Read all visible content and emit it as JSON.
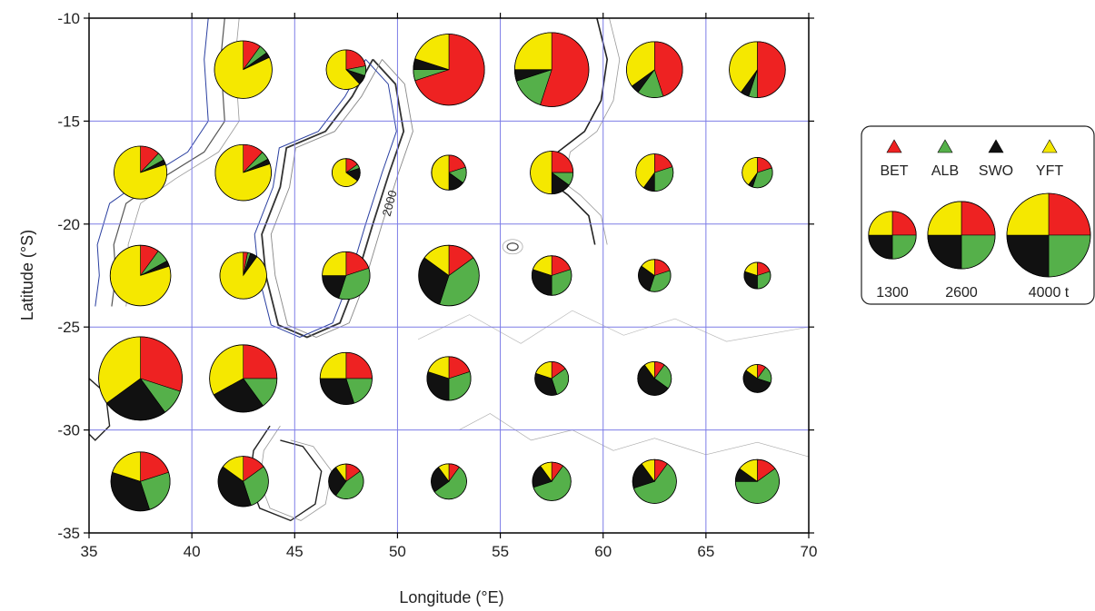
{
  "chart_data": {
    "type": "map-pie",
    "xlabel": "Longitude (°E)",
    "ylabel": "Latitude (°S)",
    "xlim": [
      35,
      70
    ],
    "ylim": [
      -35,
      -10
    ],
    "x_ticks": [
      35,
      40,
      45,
      50,
      55,
      60,
      65,
      70
    ],
    "y_ticks": [
      -10,
      -15,
      -20,
      -25,
      -30,
      -35
    ],
    "grid": true,
    "contour_label": "2000",
    "species_colors": {
      "BET": "#ee2222",
      "ALB": "#55b04a",
      "SWO": "#111111",
      "YFT": "#f5e800"
    },
    "species_order": [
      "BET",
      "ALB",
      "SWO",
      "YFT"
    ],
    "legend": {
      "placement": "right",
      "species": [
        {
          "code": "BET",
          "label": "BET",
          "color": "#ee2222"
        },
        {
          "code": "ALB",
          "label": "ALB",
          "color": "#55b04a"
        },
        {
          "code": "SWO",
          "label": "SWO",
          "color": "#111111"
        },
        {
          "code": "YFT",
          "label": "YFT",
          "color": "#f5e800"
        }
      ],
      "sizes": [
        {
          "value": 1300,
          "label": "1300"
        },
        {
          "value": 2600,
          "label": "2600"
        },
        {
          "value": 4000,
          "label": "4000 t"
        }
      ]
    },
    "catches": [
      {
        "lon": 42.5,
        "lat": -12.5,
        "total": 1900,
        "fractions": [
          0.1,
          0.05,
          0.03,
          0.82
        ]
      },
      {
        "lon": 47.5,
        "lat": -12.5,
        "total": 900,
        "fractions": [
          0.22,
          0.08,
          0.08,
          0.62
        ]
      },
      {
        "lon": 52.5,
        "lat": -12.5,
        "total": 2900,
        "fractions": [
          0.7,
          0.05,
          0.05,
          0.2
        ]
      },
      {
        "lon": 57.5,
        "lat": -12.5,
        "total": 3150,
        "fractions": [
          0.55,
          0.15,
          0.05,
          0.25
        ]
      },
      {
        "lon": 62.5,
        "lat": -12.5,
        "total": 1800,
        "fractions": [
          0.45,
          0.15,
          0.05,
          0.35
        ]
      },
      {
        "lon": 67.5,
        "lat": -12.5,
        "total": 1800,
        "fractions": [
          0.5,
          0.05,
          0.05,
          0.4
        ]
      },
      {
        "lon": 37.5,
        "lat": -17.5,
        "total": 1600,
        "fractions": [
          0.12,
          0.05,
          0.03,
          0.8
        ]
      },
      {
        "lon": 42.5,
        "lat": -17.5,
        "total": 1800,
        "fractions": [
          0.12,
          0.05,
          0.03,
          0.8
        ]
      },
      {
        "lon": 47.5,
        "lat": -17.5,
        "total": 450,
        "fractions": [
          0.15,
          0.05,
          0.15,
          0.65
        ]
      },
      {
        "lon": 52.5,
        "lat": -17.5,
        "total": 700,
        "fractions": [
          0.2,
          0.15,
          0.15,
          0.5
        ]
      },
      {
        "lon": 57.5,
        "lat": -17.5,
        "total": 1050,
        "fractions": [
          0.25,
          0.1,
          0.15,
          0.5
        ]
      },
      {
        "lon": 62.5,
        "lat": -17.5,
        "total": 800,
        "fractions": [
          0.2,
          0.3,
          0.1,
          0.4
        ]
      },
      {
        "lon": 67.5,
        "lat": -17.5,
        "total": 530,
        "fractions": [
          0.2,
          0.35,
          0.05,
          0.4
        ]
      },
      {
        "lon": 37.5,
        "lat": -22.5,
        "total": 2100,
        "fractions": [
          0.1,
          0.07,
          0.03,
          0.8
        ]
      },
      {
        "lon": 42.5,
        "lat": -22.5,
        "total": 1250,
        "fractions": [
          0.03,
          0.02,
          0.05,
          0.9
        ]
      },
      {
        "lon": 47.5,
        "lat": -22.5,
        "total": 1300,
        "fractions": [
          0.2,
          0.35,
          0.2,
          0.25
        ]
      },
      {
        "lon": 52.5,
        "lat": -22.5,
        "total": 2100,
        "fractions": [
          0.15,
          0.4,
          0.3,
          0.15
        ]
      },
      {
        "lon": 57.5,
        "lat": -22.5,
        "total": 900,
        "fractions": [
          0.2,
          0.3,
          0.3,
          0.2
        ]
      },
      {
        "lon": 62.5,
        "lat": -22.5,
        "total": 600,
        "fractions": [
          0.2,
          0.35,
          0.3,
          0.15
        ]
      },
      {
        "lon": 67.5,
        "lat": -22.5,
        "total": 400,
        "fractions": [
          0.2,
          0.3,
          0.3,
          0.2
        ]
      },
      {
        "lon": 37.5,
        "lat": -27.5,
        "total": 4000,
        "fractions": [
          0.3,
          0.1,
          0.25,
          0.35
        ]
      },
      {
        "lon": 42.5,
        "lat": -27.5,
        "total": 2600,
        "fractions": [
          0.25,
          0.15,
          0.27,
          0.33
        ]
      },
      {
        "lon": 47.5,
        "lat": -27.5,
        "total": 1550,
        "fractions": [
          0.25,
          0.2,
          0.3,
          0.25
        ]
      },
      {
        "lon": 52.5,
        "lat": -27.5,
        "total": 1100,
        "fractions": [
          0.2,
          0.3,
          0.3,
          0.2
        ]
      },
      {
        "lon": 57.5,
        "lat": -27.5,
        "total": 650,
        "fractions": [
          0.15,
          0.3,
          0.35,
          0.2
        ]
      },
      {
        "lon": 62.5,
        "lat": -27.5,
        "total": 650,
        "fractions": [
          0.1,
          0.25,
          0.55,
          0.1
        ]
      },
      {
        "lon": 67.5,
        "lat": -27.5,
        "total": 450,
        "fractions": [
          0.1,
          0.2,
          0.55,
          0.15
        ]
      },
      {
        "lon": 37.5,
        "lat": -32.5,
        "total": 2000,
        "fractions": [
          0.2,
          0.25,
          0.35,
          0.2
        ]
      },
      {
        "lon": 42.5,
        "lat": -32.5,
        "total": 1450,
        "fractions": [
          0.15,
          0.3,
          0.4,
          0.15
        ]
      },
      {
        "lon": 47.5,
        "lat": -32.5,
        "total": 700,
        "fractions": [
          0.15,
          0.45,
          0.3,
          0.1
        ]
      },
      {
        "lon": 52.5,
        "lat": -32.5,
        "total": 720,
        "fractions": [
          0.1,
          0.55,
          0.25,
          0.1
        ]
      },
      {
        "lon": 57.5,
        "lat": -32.5,
        "total": 850,
        "fractions": [
          0.1,
          0.6,
          0.2,
          0.1
        ]
      },
      {
        "lon": 62.5,
        "lat": -32.5,
        "total": 1100,
        "fractions": [
          0.1,
          0.6,
          0.2,
          0.1
        ]
      },
      {
        "lon": 67.5,
        "lat": -32.5,
        "total": 1100,
        "fractions": [
          0.15,
          0.6,
          0.1,
          0.15
        ]
      }
    ]
  }
}
